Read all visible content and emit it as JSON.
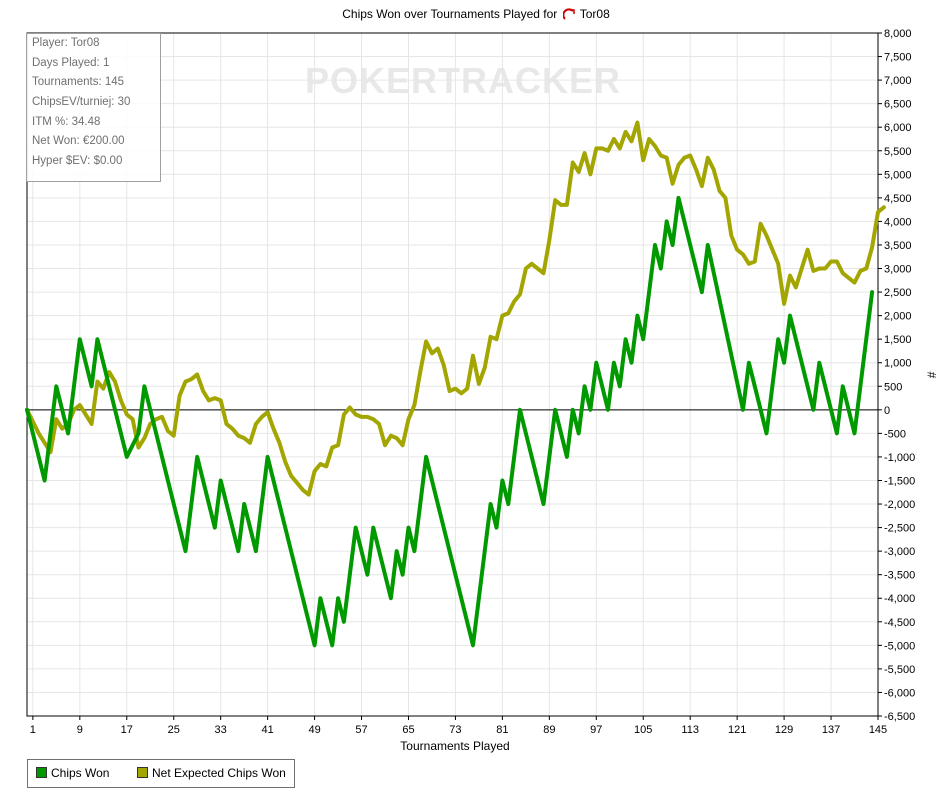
{
  "chart_data": {
    "type": "line",
    "title": "Chips Won over Tournaments Played for",
    "title_player": "Tor08",
    "xlabel": "Tournaments Played",
    "ylabel": "#",
    "xlim": [
      0,
      145
    ],
    "ylim": [
      -6500,
      8000
    ],
    "x_ticks": [
      1,
      9,
      17,
      25,
      33,
      41,
      49,
      57,
      65,
      73,
      81,
      89,
      97,
      105,
      113,
      121,
      129,
      137,
      145
    ],
    "y_ticks": [
      8000,
      7500,
      7000,
      6500,
      6000,
      5500,
      5000,
      4500,
      4000,
      3500,
      3000,
      2500,
      2000,
      1500,
      1000,
      500,
      0,
      -500,
      -1000,
      -1500,
      -2000,
      -2500,
      -3000,
      -3500,
      -4000,
      -4500,
      -5000,
      -5500,
      -6000,
      -6500
    ],
    "y_tick_labels": [
      "8,000",
      "7,500",
      "7,000",
      "6,500",
      "6,000",
      "5,500",
      "5,000",
      "4,500",
      "4,000",
      "3,500",
      "3,000",
      "2,500",
      "2,000",
      "1,500",
      "1,000",
      "500",
      "0",
      "-500",
      "-1,000",
      "-1,500",
      "-2,000",
      "-2,500",
      "-3,000",
      "-3,500",
      "-4,000",
      "-4,500",
      "-5,000",
      "-5,500",
      "-6,000",
      "-6,500"
    ],
    "grid": true,
    "legend_position": "bottom-left",
    "series": [
      {
        "name": "Chips Won",
        "color": "#009900",
        "points": [
          [
            0,
            0
          ],
          [
            3,
            -1500
          ],
          [
            5,
            500
          ],
          [
            7,
            -500
          ],
          [
            9,
            1500
          ],
          [
            11,
            500
          ],
          [
            12,
            1500
          ],
          [
            17,
            -1000
          ],
          [
            19,
            -500
          ],
          [
            20,
            500
          ],
          [
            27,
            -3000
          ],
          [
            29,
            -1000
          ],
          [
            32,
            -2500
          ],
          [
            33,
            -1500
          ],
          [
            36,
            -3000
          ],
          [
            37,
            -2000
          ],
          [
            39,
            -3000
          ],
          [
            41,
            -1000
          ],
          [
            49,
            -5000
          ],
          [
            50,
            -4000
          ],
          [
            52,
            -5000
          ],
          [
            53,
            -4000
          ],
          [
            54,
            -4500
          ],
          [
            56,
            -2500
          ],
          [
            58,
            -3500
          ],
          [
            59,
            -2500
          ],
          [
            62,
            -4000
          ],
          [
            63,
            -3000
          ],
          [
            64,
            -3500
          ],
          [
            65,
            -2500
          ],
          [
            66,
            -3000
          ],
          [
            68,
            -1000
          ],
          [
            76,
            -5000
          ],
          [
            79,
            -2000
          ],
          [
            80,
            -2500
          ],
          [
            81,
            -1500
          ],
          [
            82,
            -2000
          ],
          [
            84,
            0
          ],
          [
            88,
            -2000
          ],
          [
            90,
            0
          ],
          [
            92,
            -1000
          ],
          [
            93,
            0
          ],
          [
            94,
            -500
          ],
          [
            95,
            500
          ],
          [
            96,
            0
          ],
          [
            97,
            1000
          ],
          [
            99,
            0
          ],
          [
            100,
            1000
          ],
          [
            101,
            500
          ],
          [
            102,
            1500
          ],
          [
            103,
            1000
          ],
          [
            104,
            2000
          ],
          [
            105,
            1500
          ],
          [
            107,
            3500
          ],
          [
            108,
            3000
          ],
          [
            109,
            4000
          ],
          [
            110,
            3500
          ],
          [
            111,
            4500
          ],
          [
            115,
            2500
          ],
          [
            116,
            3500
          ],
          [
            122,
            0
          ],
          [
            123,
            1000
          ],
          [
            126,
            -500
          ],
          [
            128,
            1500
          ],
          [
            129,
            1000
          ],
          [
            130,
            2000
          ],
          [
            134,
            0
          ],
          [
            135,
            1000
          ],
          [
            138,
            -500
          ],
          [
            139,
            500
          ],
          [
            141,
            -500
          ],
          [
            144,
            2500
          ]
        ]
      },
      {
        "name": "Net Expected Chips Won",
        "color": "#a3a500",
        "points": [
          [
            0,
            0
          ],
          [
            2,
            -500
          ],
          [
            4,
            -900
          ],
          [
            5,
            -200
          ],
          [
            6,
            -400
          ],
          [
            7,
            -300
          ],
          [
            8,
            0
          ],
          [
            9,
            100
          ],
          [
            10,
            -100
          ],
          [
            11,
            -300
          ],
          [
            12,
            600
          ],
          [
            13,
            450
          ],
          [
            14,
            800
          ],
          [
            15,
            600
          ],
          [
            16,
            200
          ],
          [
            17,
            -100
          ],
          [
            18,
            -200
          ],
          [
            19,
            -800
          ],
          [
            20,
            -600
          ],
          [
            21,
            -300
          ],
          [
            22,
            -200
          ],
          [
            23,
            -150
          ],
          [
            24,
            -450
          ],
          [
            25,
            -550
          ],
          [
            26,
            300
          ],
          [
            27,
            600
          ],
          [
            28,
            650
          ],
          [
            29,
            750
          ],
          [
            30,
            400
          ],
          [
            31,
            200
          ],
          [
            32,
            250
          ],
          [
            33,
            200
          ],
          [
            34,
            -300
          ],
          [
            35,
            -400
          ],
          [
            36,
            -550
          ],
          [
            37,
            -600
          ],
          [
            38,
            -700
          ],
          [
            39,
            -300
          ],
          [
            40,
            -150
          ],
          [
            41,
            -50
          ],
          [
            42,
            -400
          ],
          [
            43,
            -700
          ],
          [
            44,
            -1100
          ],
          [
            45,
            -1400
          ],
          [
            46,
            -1550
          ],
          [
            47,
            -1700
          ],
          [
            48,
            -1800
          ],
          [
            49,
            -1300
          ],
          [
            50,
            -1150
          ],
          [
            51,
            -1200
          ],
          [
            52,
            -800
          ],
          [
            53,
            -750
          ],
          [
            54,
            -100
          ],
          [
            55,
            50
          ],
          [
            56,
            -100
          ],
          [
            57,
            -150
          ],
          [
            58,
            -150
          ],
          [
            59,
            -200
          ],
          [
            60,
            -300
          ],
          [
            61,
            -750
          ],
          [
            62,
            -550
          ],
          [
            63,
            -600
          ],
          [
            64,
            -750
          ],
          [
            65,
            -200
          ],
          [
            66,
            100
          ],
          [
            67,
            800
          ],
          [
            68,
            1450
          ],
          [
            69,
            1200
          ],
          [
            70,
            1300
          ],
          [
            71,
            950
          ],
          [
            72,
            400
          ],
          [
            73,
            450
          ],
          [
            74,
            350
          ],
          [
            75,
            450
          ],
          [
            76,
            1150
          ],
          [
            77,
            550
          ],
          [
            78,
            900
          ],
          [
            79,
            1550
          ],
          [
            80,
            1500
          ],
          [
            81,
            2000
          ],
          [
            82,
            2050
          ],
          [
            83,
            2300
          ],
          [
            84,
            2450
          ],
          [
            85,
            3000
          ],
          [
            86,
            3100
          ],
          [
            87,
            3000
          ],
          [
            88,
            2900
          ],
          [
            89,
            3600
          ],
          [
            90,
            4450
          ],
          [
            91,
            4350
          ],
          [
            92,
            4350
          ],
          [
            93,
            5250
          ],
          [
            94,
            5050
          ],
          [
            95,
            5450
          ],
          [
            96,
            5000
          ],
          [
            97,
            5550
          ],
          [
            98,
            5550
          ],
          [
            99,
            5500
          ],
          [
            100,
            5750
          ],
          [
            101,
            5550
          ],
          [
            102,
            5900
          ],
          [
            103,
            5700
          ],
          [
            104,
            6100
          ],
          [
            105,
            5300
          ],
          [
            106,
            5750
          ],
          [
            107,
            5600
          ],
          [
            108,
            5400
          ],
          [
            109,
            5350
          ],
          [
            110,
            4800
          ],
          [
            111,
            5200
          ],
          [
            112,
            5350
          ],
          [
            113,
            5400
          ],
          [
            114,
            5100
          ],
          [
            115,
            4750
          ],
          [
            116,
            5350
          ],
          [
            117,
            5100
          ],
          [
            118,
            4650
          ],
          [
            119,
            4500
          ],
          [
            120,
            3700
          ],
          [
            121,
            3400
          ],
          [
            122,
            3300
          ],
          [
            123,
            3100
          ],
          [
            124,
            3150
          ],
          [
            125,
            3950
          ],
          [
            126,
            3700
          ],
          [
            127,
            3400
          ],
          [
            128,
            3100
          ],
          [
            129,
            2250
          ],
          [
            130,
            2850
          ],
          [
            131,
            2600
          ],
          [
            132,
            3000
          ],
          [
            133,
            3400
          ],
          [
            134,
            2950
          ],
          [
            135,
            3000
          ],
          [
            136,
            3000
          ],
          [
            137,
            3150
          ],
          [
            138,
            3150
          ],
          [
            139,
            2900
          ],
          [
            140,
            2800
          ],
          [
            141,
            2700
          ],
          [
            142,
            2950
          ],
          [
            143,
            3000
          ],
          [
            144,
            3450
          ],
          [
            145,
            4200
          ],
          [
            146,
            4300
          ]
        ]
      }
    ]
  },
  "infobox": {
    "lines": [
      "Player: Tor08",
      "Days Played: 1",
      "Tournaments: 145",
      "ChipsEV/turniej: 30",
      "ITM %: 34.48",
      "Net Won: €200.00",
      "Hyper $EV: $0.00"
    ]
  },
  "watermark": "POKERTRACKER",
  "legend": {
    "items": [
      "Chips Won",
      "Net Expected Chips Won"
    ]
  }
}
